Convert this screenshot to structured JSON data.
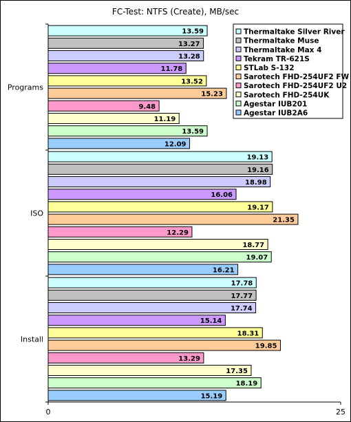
{
  "chart_data": {
    "type": "bar",
    "orientation": "horizontal",
    "title": "FC-Test: NTFS (Create),  MB/sec",
    "xlim": [
      0,
      25
    ],
    "x_ticks": [
      "0",
      "25"
    ],
    "categories": [
      "Programs",
      "ISO",
      "Install"
    ],
    "legend_position": "top-right",
    "series": [
      {
        "name": "Thermaltake Silver River",
        "color": "#ccffff",
        "values": [
          13.59,
          19.13,
          17.78
        ]
      },
      {
        "name": "Thermaltake Muse",
        "color": "#c0c0c0",
        "values": [
          13.27,
          19.16,
          17.77
        ]
      },
      {
        "name": "Thermaltake Max 4",
        "color": "#ccccff",
        "values": [
          13.28,
          18.98,
          17.74
        ]
      },
      {
        "name": "Tekram TR-621S",
        "color": "#cc99ff",
        "values": [
          11.78,
          16.06,
          15.14
        ]
      },
      {
        "name": "STLab S-132",
        "color": "#ffff99",
        "values": [
          13.52,
          19.17,
          18.31
        ]
      },
      {
        "name": "Sarotech FHD-254UF2 FW",
        "color": "#ffcc99",
        "values": [
          15.23,
          21.35,
          19.85
        ]
      },
      {
        "name": "Sarotech FHD-254UF2 U2",
        "color": "#ff99cc",
        "values": [
          9.48,
          12.29,
          13.29
        ]
      },
      {
        "name": "Sarotech FHD-254UK",
        "color": "#ffffcc",
        "values": [
          11.19,
          18.77,
          17.35
        ]
      },
      {
        "name": "Agestar IUB201",
        "color": "#ccffcc",
        "values": [
          13.59,
          19.07,
          18.19
        ]
      },
      {
        "name": "Agestar IUB2A6",
        "color": "#99ccff",
        "values": [
          12.09,
          16.21,
          15.19
        ]
      }
    ]
  }
}
